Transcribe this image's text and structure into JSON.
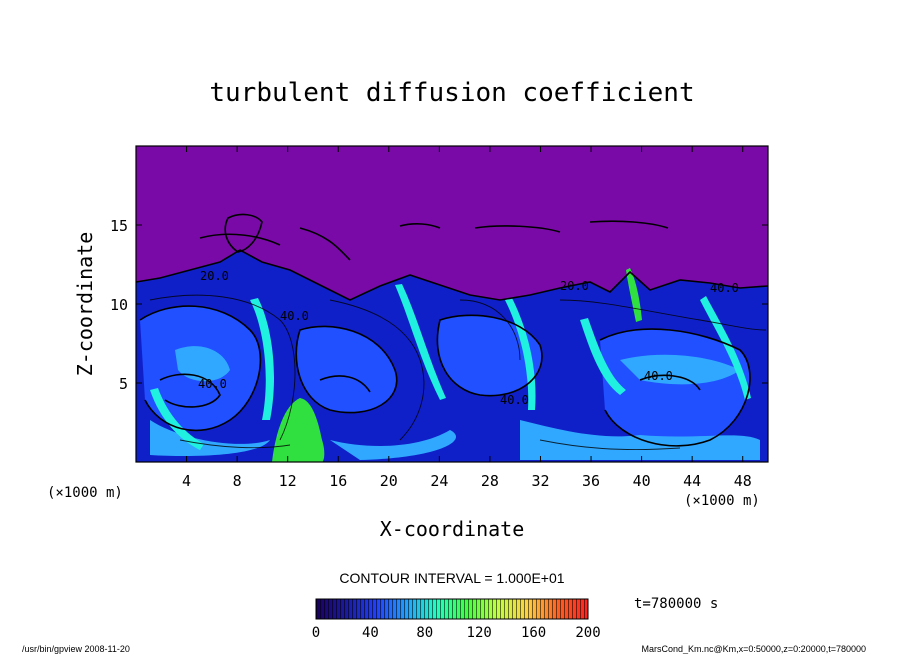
{
  "chart_data": {
    "type": "heatmap",
    "title": "turbulent diffusion coefficient",
    "xlabel": "X-coordinate",
    "ylabel": "Z-coordinate",
    "x_unit": "(×1000 m)",
    "z_unit": "(×1000 m)",
    "xlim": [
      0,
      50
    ],
    "ylim": [
      0,
      20
    ],
    "x_ticks": [
      4,
      8,
      12,
      16,
      20,
      24,
      28,
      32,
      36,
      40,
      44,
      48
    ],
    "y_ticks": [
      5,
      10,
      15
    ],
    "contour_interval_text": "CONTOUR INTERVAL = 1.000E+01",
    "time_label": "t=780000 s",
    "colorbar": {
      "ticks": [
        0,
        40,
        80,
        120,
        160,
        200
      ],
      "range": [
        0,
        200
      ],
      "colors": [
        "#1a0060",
        "#1a1aa0",
        "#2040ff",
        "#20a0ff",
        "#20ffc0",
        "#40ff40",
        "#c0ff40",
        "#ffd040",
        "#ff6020",
        "#ff2020"
      ]
    },
    "contour_labels": [
      "20.0",
      "40.0",
      "40.0",
      "40.0",
      "20.0",
      "40.0",
      "40.0"
    ],
    "field_colors": {
      "background_upper": "#7a0aa8",
      "deep_blue": "#1020c8",
      "blue": "#2050ff",
      "light_blue": "#30a8ff",
      "cyan": "#20f0e0",
      "green": "#30e040"
    },
    "grid": false
  },
  "footer": {
    "program": "/usr/bin/gpview   2008-11-20",
    "source": "MarsCond_Km.nc@Km,x=0:50000,z=0:20000,t=780000"
  }
}
